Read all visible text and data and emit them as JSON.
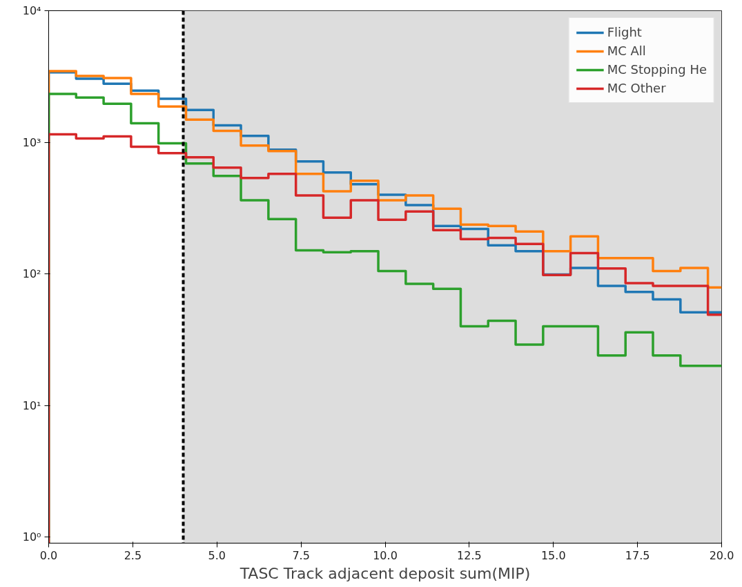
{
  "chart_data": {
    "type": "histogram",
    "xlabel": "TASC Track adjacent deposit sum(MIP)",
    "bins": [
      0,
      0.816,
      1.633,
      2.449,
      3.265,
      4.082,
      4.898,
      5.714,
      6.531,
      7.347,
      8.163,
      8.98,
      9.796,
      10.612,
      11.429,
      12.245,
      13.061,
      13.878,
      14.694,
      15.51,
      16.327,
      17.143,
      17.959,
      18.776,
      19.592,
      20
    ],
    "series": [
      {
        "name": "Flight",
        "color": "#1f77b4",
        "values": [
          3400,
          3040,
          2790,
          2470,
          2140,
          1760,
          1345,
          1120,
          880,
          716,
          590,
          480,
          400,
          333,
          231,
          220,
          165,
          149,
          99,
          111,
          81,
          73,
          64,
          51,
          51
        ]
      },
      {
        "name": "MC All",
        "color": "#ff7f0e",
        "values": [
          3475,
          3190,
          3075,
          2330,
          1870,
          1485,
          1222,
          946,
          859,
          575,
          425,
          510,
          363,
          395,
          313,
          237,
          231,
          210,
          149,
          193,
          132,
          132,
          105,
          111,
          79
        ]
      },
      {
        "name": "MC Stopping He",
        "color": "#2ca02c",
        "values": [
          2330,
          2190,
          1965,
          1397,
          982,
          690,
          555,
          363,
          261,
          151,
          146,
          149,
          105,
          84,
          77,
          40,
          44,
          29,
          40,
          40,
          24,
          36,
          24,
          20,
          20
        ]
      },
      {
        "name": "MC Other",
        "color": "#d62728",
        "values": [
          1150,
          1070,
          1110,
          924,
          828,
          770,
          642,
          535,
          575,
          395,
          267,
          363,
          258,
          298,
          215,
          184,
          188,
          169,
          98,
          144,
          110,
          85,
          81,
          81,
          49
        ]
      }
    ],
    "xlim": [
      0,
      20
    ],
    "ylim": [
      0.9,
      10000
    ],
    "log": "y",
    "xticks": [
      {
        "value": 0,
        "label": "0.0"
      },
      {
        "value": 2.5,
        "label": "2.5"
      },
      {
        "value": 5,
        "label": "5.0"
      },
      {
        "value": 7.5,
        "label": "7.5"
      },
      {
        "value": 10,
        "label": "10.0"
      },
      {
        "value": 12.5,
        "label": "12.5"
      },
      {
        "value": 15,
        "label": "15.0"
      },
      {
        "value": 17.5,
        "label": "17.5"
      },
      {
        "value": 20,
        "label": "20.0"
      }
    ],
    "yticks": [
      {
        "value": 1,
        "label": "10⁰"
      },
      {
        "value": 10,
        "label": "10¹"
      },
      {
        "value": 100,
        "label": "10²"
      },
      {
        "value": 1000,
        "label": "10³"
      },
      {
        "value": 10000,
        "label": "10⁴"
      }
    ],
    "ref_lines": [
      {
        "axis": "x",
        "value": 4,
        "color": "#000000",
        "line_style": "dashed"
      }
    ],
    "bands": [
      {
        "axis": "x",
        "from": 4,
        "to": 20,
        "color": "#dddddd"
      }
    ],
    "grid": false,
    "legend": "top right",
    "line_style": "solid"
  }
}
